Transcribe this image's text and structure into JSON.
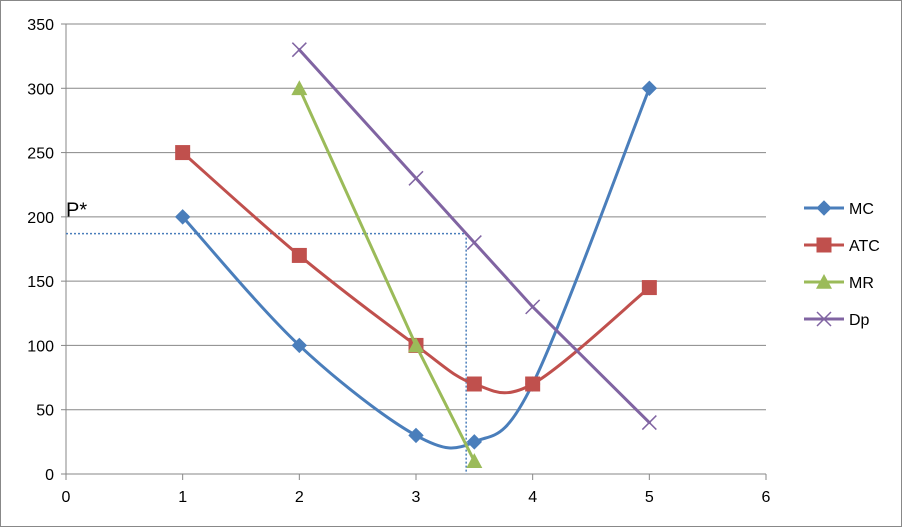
{
  "chart_data": {
    "type": "line",
    "title": "",
    "xlabel": "",
    "ylabel": "",
    "xlim": [
      0,
      6
    ],
    "ylim": [
      0,
      350
    ],
    "x_ticks": [
      0,
      1,
      2,
      3,
      4,
      5,
      6
    ],
    "y_ticks": [
      0,
      50,
      100,
      150,
      200,
      250,
      300,
      350
    ],
    "grid": "horizontal",
    "legend_position": "right",
    "series": [
      {
        "name": "MC",
        "color": "#4a7ebb",
        "marker": "diamond",
        "smooth": true,
        "points": [
          [
            1,
            200
          ],
          [
            2,
            100
          ],
          [
            3,
            30
          ],
          [
            3.5,
            25
          ],
          [
            4,
            70
          ],
          [
            5,
            300
          ]
        ]
      },
      {
        "name": "ATC",
        "color": "#c0504d",
        "marker": "square",
        "smooth": true,
        "points": [
          [
            1,
            250
          ],
          [
            2,
            170
          ],
          [
            3,
            100
          ],
          [
            3.5,
            70
          ],
          [
            4,
            70
          ],
          [
            5,
            145
          ]
        ]
      },
      {
        "name": "MR",
        "color": "#9bbb59",
        "marker": "triangle",
        "smooth": false,
        "points": [
          [
            2,
            300
          ],
          [
            3,
            100
          ],
          [
            3.5,
            10
          ]
        ]
      },
      {
        "name": "Dp",
        "color": "#8064a2",
        "marker": "x",
        "smooth": false,
        "points": [
          [
            2,
            330
          ],
          [
            3,
            230
          ],
          [
            3.5,
            180
          ],
          [
            4,
            130
          ],
          [
            5,
            40
          ]
        ]
      }
    ],
    "annotations": [
      {
        "text": "P*",
        "value": 187,
        "quantity": 3.43,
        "style": "dotted",
        "color": "#4a7ebb"
      }
    ]
  }
}
